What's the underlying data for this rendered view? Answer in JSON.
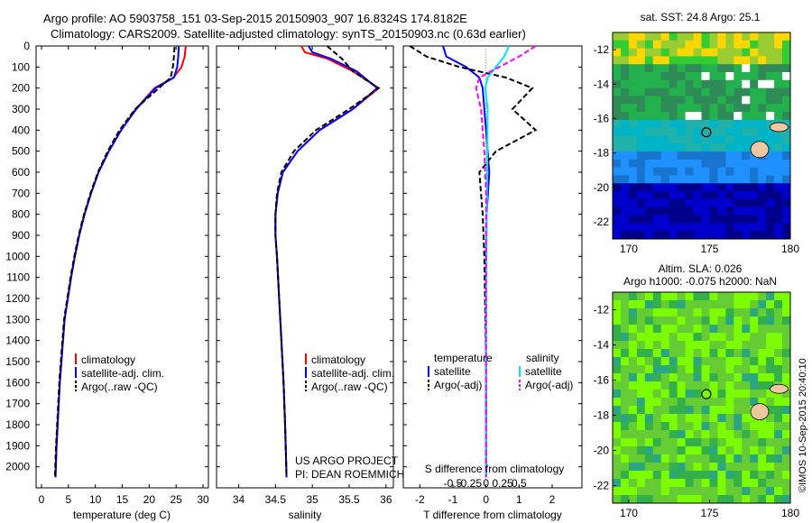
{
  "header": {
    "line1": "Argo profile: AO 5903758_151 03-Sep-2015 20150903_907 16.8324S 174.8182E",
    "line2": "Climatology: CARS2009. Satellite-adjusted climatology: synTS_20150903.nc (0.63d earlier)"
  },
  "side_stamp": "©IMOS 10-Sep-2015 20:40:10",
  "colors": {
    "climatology": "#ff0000",
    "satellite": "#0000ff",
    "argo": "#000000",
    "salinity_sat": "#00e5ee",
    "salinity_argo": "#ff00ff",
    "land": "#f0c8a0",
    "frame": "#000000"
  },
  "chart_data": [
    {
      "type": "line",
      "panel": "temperature",
      "xlabel": "temperature (deg C)",
      "xlim": [
        -1,
        31
      ],
      "xticks": [
        "0",
        "5",
        "10",
        "15",
        "20",
        "25",
        "30"
      ],
      "ylim": [
        2100,
        0
      ],
      "yticks": [
        "0",
        "100",
        "200",
        "300",
        "400",
        "500",
        "600",
        "700",
        "800",
        "900",
        "1000",
        "1100",
        "1200",
        "1300",
        "1400",
        "1500",
        "1600",
        "1700",
        "1800",
        "1900",
        "2000"
      ],
      "legend": [
        "climatology",
        "satellite-adj. clim.",
        "Argo(..raw -QC)"
      ],
      "series": [
        {
          "name": "climatology",
          "x": [
            26.8,
            26.6,
            26.0,
            24.5,
            21.0,
            17.5,
            14.8,
            12.5,
            10.6,
            9.2,
            8.0,
            7.0,
            6.2,
            5.5,
            4.3,
            3.4,
            2.8,
            2.6
          ],
          "y": [
            0,
            50,
            100,
            150,
            200,
            300,
            400,
            500,
            600,
            700,
            800,
            900,
            1000,
            1100,
            1300,
            1600,
            1900,
            2050
          ]
        },
        {
          "name": "satellite-adj. clim.",
          "x": [
            25.5,
            25.4,
            25.2,
            24.6,
            21.2,
            17.6,
            14.8,
            12.5,
            10.6,
            9.2,
            8.0,
            7.0,
            6.2,
            5.5,
            4.3,
            3.4,
            2.8,
            2.6
          ],
          "y": [
            0,
            50,
            100,
            150,
            200,
            300,
            400,
            500,
            600,
            700,
            800,
            900,
            1000,
            1100,
            1300,
            1600,
            1900,
            2050
          ]
        },
        {
          "name": "Argo(..raw -QC)",
          "x": [
            24.7,
            24.6,
            24.4,
            24.0,
            21.8,
            17.4,
            14.5,
            12.3,
            10.5,
            9.1,
            7.9,
            6.9,
            6.1,
            5.4,
            4.2,
            3.3,
            2.7,
            2.5
          ],
          "y": [
            5,
            50,
            100,
            150,
            200,
            300,
            400,
            500,
            600,
            700,
            800,
            900,
            1000,
            1100,
            1300,
            1600,
            1900,
            2050
          ]
        }
      ]
    },
    {
      "type": "line",
      "panel": "salinity",
      "xlabel": "salinity",
      "xlim": [
        33.7,
        36.1
      ],
      "xticks": [
        "34",
        "34.5",
        "35",
        "35.5",
        "36"
      ],
      "ylim": [
        2100,
        0
      ],
      "legend": [
        "climatology",
        "satellite-adj. clim.",
        "Argo(..raw -QC)"
      ],
      "series": [
        {
          "name": "climatology",
          "x": [
            34.85,
            34.9,
            35.2,
            35.55,
            35.9,
            35.55,
            35.1,
            34.8,
            34.6,
            34.53,
            34.5,
            34.5,
            34.52,
            34.55,
            34.58,
            34.61,
            34.63,
            34.65
          ],
          "y": [
            0,
            30,
            60,
            120,
            200,
            300,
            400,
            500,
            600,
            700,
            800,
            900,
            1000,
            1200,
            1400,
            1600,
            1800,
            2050
          ]
        },
        {
          "name": "satellite-adj. clim.",
          "x": [
            34.95,
            35.0,
            35.25,
            35.6,
            35.88,
            35.55,
            35.1,
            34.8,
            34.6,
            34.53,
            34.5,
            34.5,
            34.52,
            34.55,
            34.58,
            34.61,
            34.63,
            34.65
          ],
          "y": [
            0,
            30,
            60,
            120,
            200,
            300,
            400,
            500,
            600,
            700,
            800,
            900,
            1000,
            1200,
            1400,
            1600,
            1800,
            2050
          ]
        },
        {
          "name": "Argo(..raw -QC)",
          "x": [
            35.2,
            35.3,
            35.4,
            35.55,
            35.9,
            35.5,
            35.05,
            34.75,
            34.58,
            34.52,
            34.5,
            34.5,
            34.52,
            34.55,
            34.58,
            34.61,
            34.63,
            34.65
          ],
          "y": [
            0,
            30,
            60,
            120,
            200,
            300,
            400,
            500,
            600,
            700,
            800,
            900,
            1000,
            1200,
            1400,
            1600,
            1800,
            2050
          ]
        }
      ]
    },
    {
      "type": "line",
      "panel": "differences",
      "xlabel": "T difference from climatology",
      "xlabel_top": "S difference from climatology",
      "xlim": [
        -2.5,
        2.9
      ],
      "xticks": [
        "-2",
        "-1",
        "0",
        "1",
        "2"
      ],
      "xticks_s": [
        "-0.5",
        "-0.25",
        "0",
        "0.25",
        "0.5"
      ],
      "ylim": [
        2100,
        0
      ],
      "legend_headers": [
        "temperature",
        "salinity"
      ],
      "legend": [
        "satellite",
        "Argo(-adj)",
        "satellite",
        "Argo(-adj)"
      ],
      "series": [
        {
          "name": "satellite",
          "quantity": "temperature",
          "x": [
            -1.3,
            -1.2,
            -0.6,
            -0.2,
            -0.1,
            -0.05,
            0.0,
            0.05,
            0.1,
            0.02,
            0.0,
            0.0,
            0.0
          ],
          "y": [
            0,
            50,
            100,
            150,
            200,
            300,
            400,
            500,
            600,
            800,
            1000,
            1500,
            2050
          ]
        },
        {
          "name": "Argo(-adj)",
          "quantity": "temperature",
          "x": [
            -2.3,
            -1.8,
            -0.8,
            0.6,
            1.4,
            0.8,
            1.5,
            0.3,
            -0.2,
            -0.1,
            -0.05,
            0.0,
            0.0
          ],
          "y": [
            0,
            50,
            100,
            150,
            200,
            300,
            400,
            500,
            600,
            800,
            1000,
            1500,
            2050
          ]
        },
        {
          "name": "satellite",
          "quantity": "salinity",
          "x": [
            0.7,
            0.55,
            0.3,
            0.05,
            -0.02,
            0.05,
            0.04,
            0.03,
            0.02,
            0.0,
            0.0,
            0.0
          ],
          "y": [
            0,
            50,
            100,
            150,
            200,
            300,
            500,
            700,
            900,
            1200,
            1600,
            2050
          ]
        },
        {
          "name": "Argo(-adj)",
          "quantity": "salinity",
          "x": [
            1.5,
            1.0,
            0.4,
            -0.2,
            -0.3,
            -0.15,
            -0.05,
            0.0,
            0.0,
            0.0,
            0.0,
            0.0
          ],
          "y": [
            0,
            50,
            100,
            150,
            200,
            300,
            500,
            700,
            900,
            1200,
            1600,
            2050
          ]
        }
      ]
    },
    {
      "type": "heatmap",
      "panel": "sst_map",
      "title": "sat. SST: 24.8 Argo: 25.1",
      "xticks": [
        "170",
        "175",
        "180"
      ],
      "yticks": [
        "-12",
        "-14",
        "-16",
        "-18",
        "-20",
        "-22"
      ],
      "xlim": [
        169,
        180
      ],
      "ylim": [
        -23,
        -11
      ],
      "marker": {
        "lon": 174.8,
        "lat": -16.8
      }
    },
    {
      "type": "heatmap",
      "panel": "sla_map",
      "title": "Altim. SLA: 0.026",
      "subtitle": "Argo h1000: -0.075 h2000: NaN",
      "xticks": [
        "170",
        "175",
        "180"
      ],
      "yticks": [
        "-12",
        "-14",
        "-16",
        "-18",
        "-20",
        "-22"
      ],
      "xlim": [
        169,
        180
      ],
      "ylim": [
        -23,
        -11
      ],
      "marker": {
        "lon": 174.8,
        "lat": -16.8
      }
    }
  ],
  "credits": {
    "line1": "US ARGO PROJECT",
    "line2": "PI: DEAN ROEMMICH"
  }
}
